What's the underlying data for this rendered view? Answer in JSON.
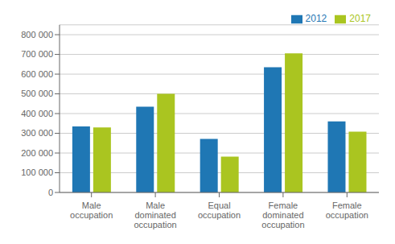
{
  "chart_data": {
    "type": "bar",
    "categories": [
      "Male\noccupation",
      "Male\ndominated\noccupation",
      "Equal\noccupation",
      "Female\ndominated\noccupation",
      "Female\noccupation"
    ],
    "series": [
      {
        "name": "2012",
        "color": "#1f77b4",
        "values": [
          335000,
          435000,
          272000,
          635000,
          360000
        ]
      },
      {
        "name": "2017",
        "color": "#aac520",
        "values": [
          330000,
          500000,
          182000,
          705000,
          308000
        ]
      }
    ],
    "ylim": [
      0,
      850000
    ],
    "yticks": [
      0,
      {
        "value": 100000,
        "label": "100 000"
      },
      {
        "value": 200000,
        "label": "200 000"
      },
      {
        "value": 300000,
        "label": "300 000"
      },
      {
        "value": 400000,
        "label": "400 000"
      },
      {
        "value": 500000,
        "label": "500 000"
      },
      {
        "value": 600000,
        "label": "600 000"
      },
      {
        "value": 700000,
        "label": "700 000"
      },
      {
        "value": 800000,
        "label": "800 000"
      }
    ],
    "grid": true,
    "legend": "upper right"
  }
}
